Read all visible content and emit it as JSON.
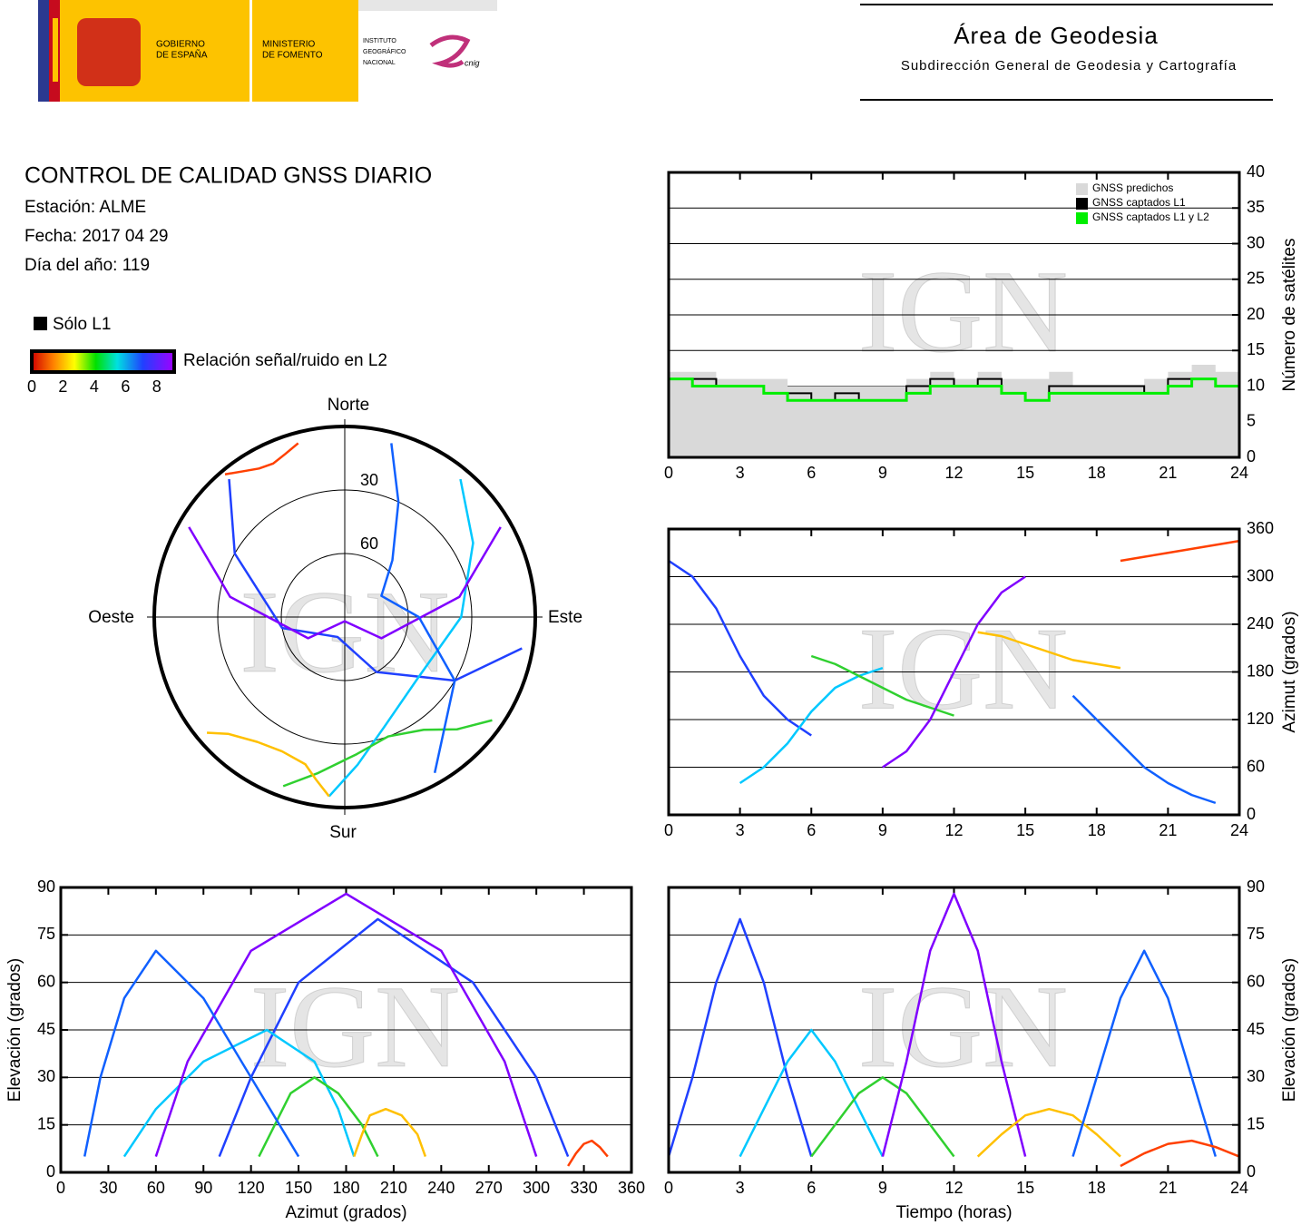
{
  "header": {
    "gov": [
      "GOBIERNO",
      "DE ESPAÑA"
    ],
    "ministry": [
      "MINISTERIO",
      "DE FOMENTO"
    ],
    "institute": [
      "INSTITUTO",
      "GEOGRÁFICO",
      "NACIONAL"
    ],
    "cnig": "cnig",
    "area": "Área de Geodesia",
    "subdirection": "Subdirección General de Geodesia y Cartografía"
  },
  "info": {
    "title": "CONTROL DE CALIDAD GNSS DIARIO",
    "station": "Estación: ALME",
    "date": "Fecha: 2017 04 29",
    "doy": "Día del año: 119"
  },
  "legend": {
    "only_l1": "Sólo L1",
    "snr_label": "Relación señal/ruido en L2",
    "snr_lim": [
      0,
      9
    ],
    "snr_ticks": [
      0,
      2,
      4,
      6,
      8
    ]
  },
  "watermark": "IGN",
  "chart_data": [
    {
      "type": "step",
      "ylabel": "Número de satélites",
      "grid": true,
      "legend": "upper right",
      "x": [
        0,
        1,
        2,
        3,
        4,
        5,
        6,
        7,
        8,
        9,
        10,
        11,
        12,
        13,
        14,
        15,
        16,
        17,
        18,
        19,
        20,
        21,
        22,
        23,
        24
      ],
      "xlim": [
        0,
        24
      ],
      "xticks": [
        0,
        3,
        6,
        9,
        12,
        15,
        18,
        21,
        24
      ],
      "ylim": [
        0,
        40
      ],
      "yticks": [
        0,
        5,
        10,
        15,
        20,
        25,
        30,
        35,
        40
      ],
      "series": [
        {
          "name": "GNSS predichos",
          "color": "#d9d9d9",
          "values": [
            12,
            12,
            11,
            11,
            11,
            10,
            10,
            10,
            10,
            10,
            11,
            12,
            11,
            12,
            11,
            11,
            12,
            10,
            10,
            10,
            11,
            12,
            13,
            12,
            12
          ]
        },
        {
          "name": "GNSS captados L1",
          "color": "#000000",
          "values": [
            11,
            11,
            10,
            10,
            9,
            9,
            8,
            9,
            8,
            8,
            10,
            11,
            10,
            11,
            9,
            8,
            10,
            10,
            10,
            10,
            9,
            11,
            11,
            10,
            10
          ]
        },
        {
          "name": "GNSS captados L1 y L2",
          "color": "#00ee00",
          "values": [
            11,
            10,
            10,
            10,
            9,
            8,
            8,
            8,
            8,
            8,
            9,
            10,
            10,
            10,
            9,
            8,
            9,
            9,
            9,
            9,
            9,
            10,
            11,
            10,
            10
          ]
        }
      ]
    },
    {
      "type": "polar",
      "north": "Norte",
      "south": "Sur",
      "east": "Este",
      "west": "Oeste",
      "rlim": [
        90,
        0
      ],
      "rticks": [
        30,
        60
      ],
      "series": [
        {
          "color": "#2040ff",
          "x": [
            320,
            300,
            260,
            200,
            150,
            120,
            100
          ],
          "values": [
            5,
            30,
            60,
            80,
            60,
            30,
            5
          ]
        },
        {
          "color": "#00c8ff",
          "x": [
            40,
            60,
            90,
            130,
            160,
            175,
            185
          ],
          "values": [
            5,
            20,
            35,
            45,
            35,
            20,
            5
          ]
        },
        {
          "color": "#30d030",
          "x": [
            200,
            190,
            175,
            160,
            145,
            135,
            125
          ],
          "values": [
            5,
            15,
            25,
            30,
            25,
            15,
            5
          ]
        },
        {
          "color": "#8000ff",
          "x": [
            60,
            80,
            120,
            180,
            240,
            280,
            300
          ],
          "values": [
            5,
            35,
            70,
            88,
            70,
            35,
            5
          ]
        },
        {
          "color": "#ffc000",
          "x": [
            230,
            225,
            215,
            205,
            195,
            190,
            185
          ],
          "values": [
            5,
            12,
            18,
            20,
            18,
            12,
            5
          ]
        },
        {
          "color": "#1060ff",
          "x": [
            150,
            120,
            90,
            60,
            40,
            25,
            15
          ],
          "values": [
            5,
            30,
            55,
            70,
            55,
            30,
            5
          ]
        },
        {
          "color": "#ff4000",
          "x": [
            320,
            325,
            330,
            335,
            340,
            345
          ],
          "values": [
            2,
            6,
            9,
            10,
            8,
            5
          ]
        }
      ]
    },
    {
      "type": "line",
      "ylabel": "Azimut (grados)",
      "grid": true,
      "xlim": [
        0,
        24
      ],
      "xticks": [
        0,
        3,
        6,
        9,
        12,
        15,
        18,
        21,
        24
      ],
      "ylim": [
        0,
        360
      ],
      "yticks": [
        0,
        60,
        120,
        180,
        240,
        300,
        360
      ],
      "series": [
        {
          "color": "#2040ff",
          "x": [
            0,
            1,
            2,
            3,
            4,
            5,
            6
          ],
          "values": [
            320,
            300,
            260,
            200,
            150,
            120,
            100
          ]
        },
        {
          "color": "#00c8ff",
          "x": [
            3,
            4,
            5,
            6,
            7,
            8,
            9
          ],
          "values": [
            40,
            60,
            90,
            130,
            160,
            175,
            185
          ]
        },
        {
          "color": "#30d030",
          "x": [
            6,
            7,
            8,
            9,
            10,
            11,
            12
          ],
          "values": [
            200,
            190,
            175,
            160,
            145,
            135,
            125
          ]
        },
        {
          "color": "#8000ff",
          "x": [
            9,
            10,
            11,
            12,
            13,
            14,
            15
          ],
          "values": [
            60,
            80,
            120,
            180,
            240,
            280,
            300
          ]
        },
        {
          "color": "#ffc000",
          "x": [
            13,
            14,
            15,
            16,
            17,
            18,
            19
          ],
          "values": [
            230,
            225,
            215,
            205,
            195,
            190,
            185
          ]
        },
        {
          "color": "#1060ff",
          "x": [
            17,
            18,
            19,
            20,
            21,
            22,
            23
          ],
          "values": [
            150,
            120,
            90,
            60,
            40,
            25,
            15
          ]
        },
        {
          "color": "#ff4000",
          "x": [
            19,
            20,
            21,
            22,
            23,
            24
          ],
          "values": [
            320,
            325,
            330,
            335,
            340,
            345
          ]
        }
      ]
    },
    {
      "type": "line",
      "xlabel": "Azimut (grados)",
      "ylabel": "Elevación (grados)",
      "grid": true,
      "xlim": [
        0,
        360
      ],
      "xticks": [
        0,
        30,
        60,
        90,
        120,
        150,
        180,
        210,
        240,
        270,
        300,
        330,
        360
      ],
      "ylim": [
        0,
        90
      ],
      "yticks": [
        0,
        15,
        30,
        45,
        60,
        75,
        90
      ],
      "series": [
        {
          "color": "#2040ff",
          "x": [
            320,
            300,
            260,
            200,
            150,
            120,
            100
          ],
          "values": [
            5,
            30,
            60,
            80,
            60,
            30,
            5
          ]
        },
        {
          "color": "#00c8ff",
          "x": [
            40,
            60,
            90,
            130,
            160,
            175,
            185
          ],
          "values": [
            5,
            20,
            35,
            45,
            35,
            20,
            5
          ]
        },
        {
          "color": "#30d030",
          "x": [
            200,
            190,
            175,
            160,
            145,
            135,
            125
          ],
          "values": [
            5,
            15,
            25,
            30,
            25,
            15,
            5
          ]
        },
        {
          "color": "#8000ff",
          "x": [
            60,
            80,
            120,
            180,
            240,
            280,
            300
          ],
          "values": [
            5,
            35,
            70,
            88,
            70,
            35,
            5
          ]
        },
        {
          "color": "#ffc000",
          "x": [
            230,
            225,
            215,
            205,
            195,
            190,
            185
          ],
          "values": [
            5,
            12,
            18,
            20,
            18,
            12,
            5
          ]
        },
        {
          "color": "#1060ff",
          "x": [
            150,
            120,
            90,
            60,
            40,
            25,
            15
          ],
          "values": [
            5,
            30,
            55,
            70,
            55,
            30,
            5
          ]
        },
        {
          "color": "#ff4000",
          "x": [
            320,
            325,
            330,
            335,
            340,
            345
          ],
          "values": [
            2,
            6,
            9,
            10,
            8,
            5
          ]
        }
      ]
    },
    {
      "type": "line",
      "xlabel": "Tiempo (horas)",
      "ylabel": "Elevación (grados)",
      "grid": true,
      "xlim": [
        0,
        24
      ],
      "xticks": [
        0,
        3,
        6,
        9,
        12,
        15,
        18,
        21,
        24
      ],
      "ylim": [
        0,
        90
      ],
      "yticks": [
        0,
        15,
        30,
        45,
        60,
        75,
        90
      ],
      "series": [
        {
          "color": "#2040ff",
          "x": [
            0,
            1,
            2,
            3,
            4,
            5,
            6
          ],
          "values": [
            5,
            30,
            60,
            80,
            60,
            30,
            5
          ]
        },
        {
          "color": "#00c8ff",
          "x": [
            3,
            4,
            5,
            6,
            7,
            8,
            9
          ],
          "values": [
            5,
            20,
            35,
            45,
            35,
            20,
            5
          ]
        },
        {
          "color": "#30d030",
          "x": [
            6,
            7,
            8,
            9,
            10,
            11,
            12
          ],
          "values": [
            5,
            15,
            25,
            30,
            25,
            15,
            5
          ]
        },
        {
          "color": "#8000ff",
          "x": [
            9,
            10,
            11,
            12,
            13,
            14,
            15
          ],
          "values": [
            5,
            35,
            70,
            88,
            70,
            35,
            5
          ]
        },
        {
          "color": "#ffc000",
          "x": [
            13,
            14,
            15,
            16,
            17,
            18,
            19
          ],
          "values": [
            5,
            12,
            18,
            20,
            18,
            12,
            5
          ]
        },
        {
          "color": "#1060ff",
          "x": [
            17,
            18,
            19,
            20,
            21,
            22,
            23
          ],
          "values": [
            5,
            30,
            55,
            70,
            55,
            30,
            5
          ]
        },
        {
          "color": "#ff4000",
          "x": [
            19,
            20,
            21,
            22,
            23,
            24
          ],
          "values": [
            2,
            6,
            9,
            10,
            8,
            5
          ]
        }
      ]
    }
  ]
}
